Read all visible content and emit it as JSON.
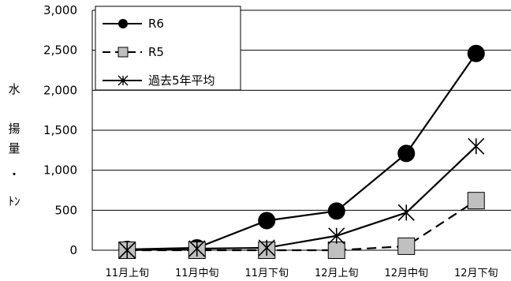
{
  "chart_data": {
    "type": "line",
    "categories": [
      "11月上旬",
      "11月中旬",
      "11月下旬",
      "12月上旬",
      "12月中旬",
      "12月下旬"
    ],
    "series": [
      {
        "name": "R6",
        "values": [
          10,
          30,
          370,
          490,
          1210,
          2460
        ],
        "color": "#000000",
        "dash": "solid",
        "marker": "filled-circle"
      },
      {
        "name": "R5",
        "values": [
          0,
          0,
          0,
          0,
          50,
          620
        ],
        "color": "#000000",
        "dash": "dashed",
        "marker": "gray-square"
      },
      {
        "name": "過去5年平均",
        "values": [
          0,
          20,
          30,
          180,
          470,
          1300
        ],
        "color": "#000000",
        "dash": "solid",
        "marker": "asterisk"
      }
    ],
    "ylim": [
      0,
      3000
    ],
    "yticks": [
      "0",
      "500",
      "1,000",
      "1,500",
      "2,000",
      "2,500",
      "3,000"
    ],
    "ylabel_chars": [
      "水",
      "揚",
      "量",
      "・",
      "ﾄﾝ"
    ],
    "grid": "horizontal",
    "legend": "top-left"
  }
}
